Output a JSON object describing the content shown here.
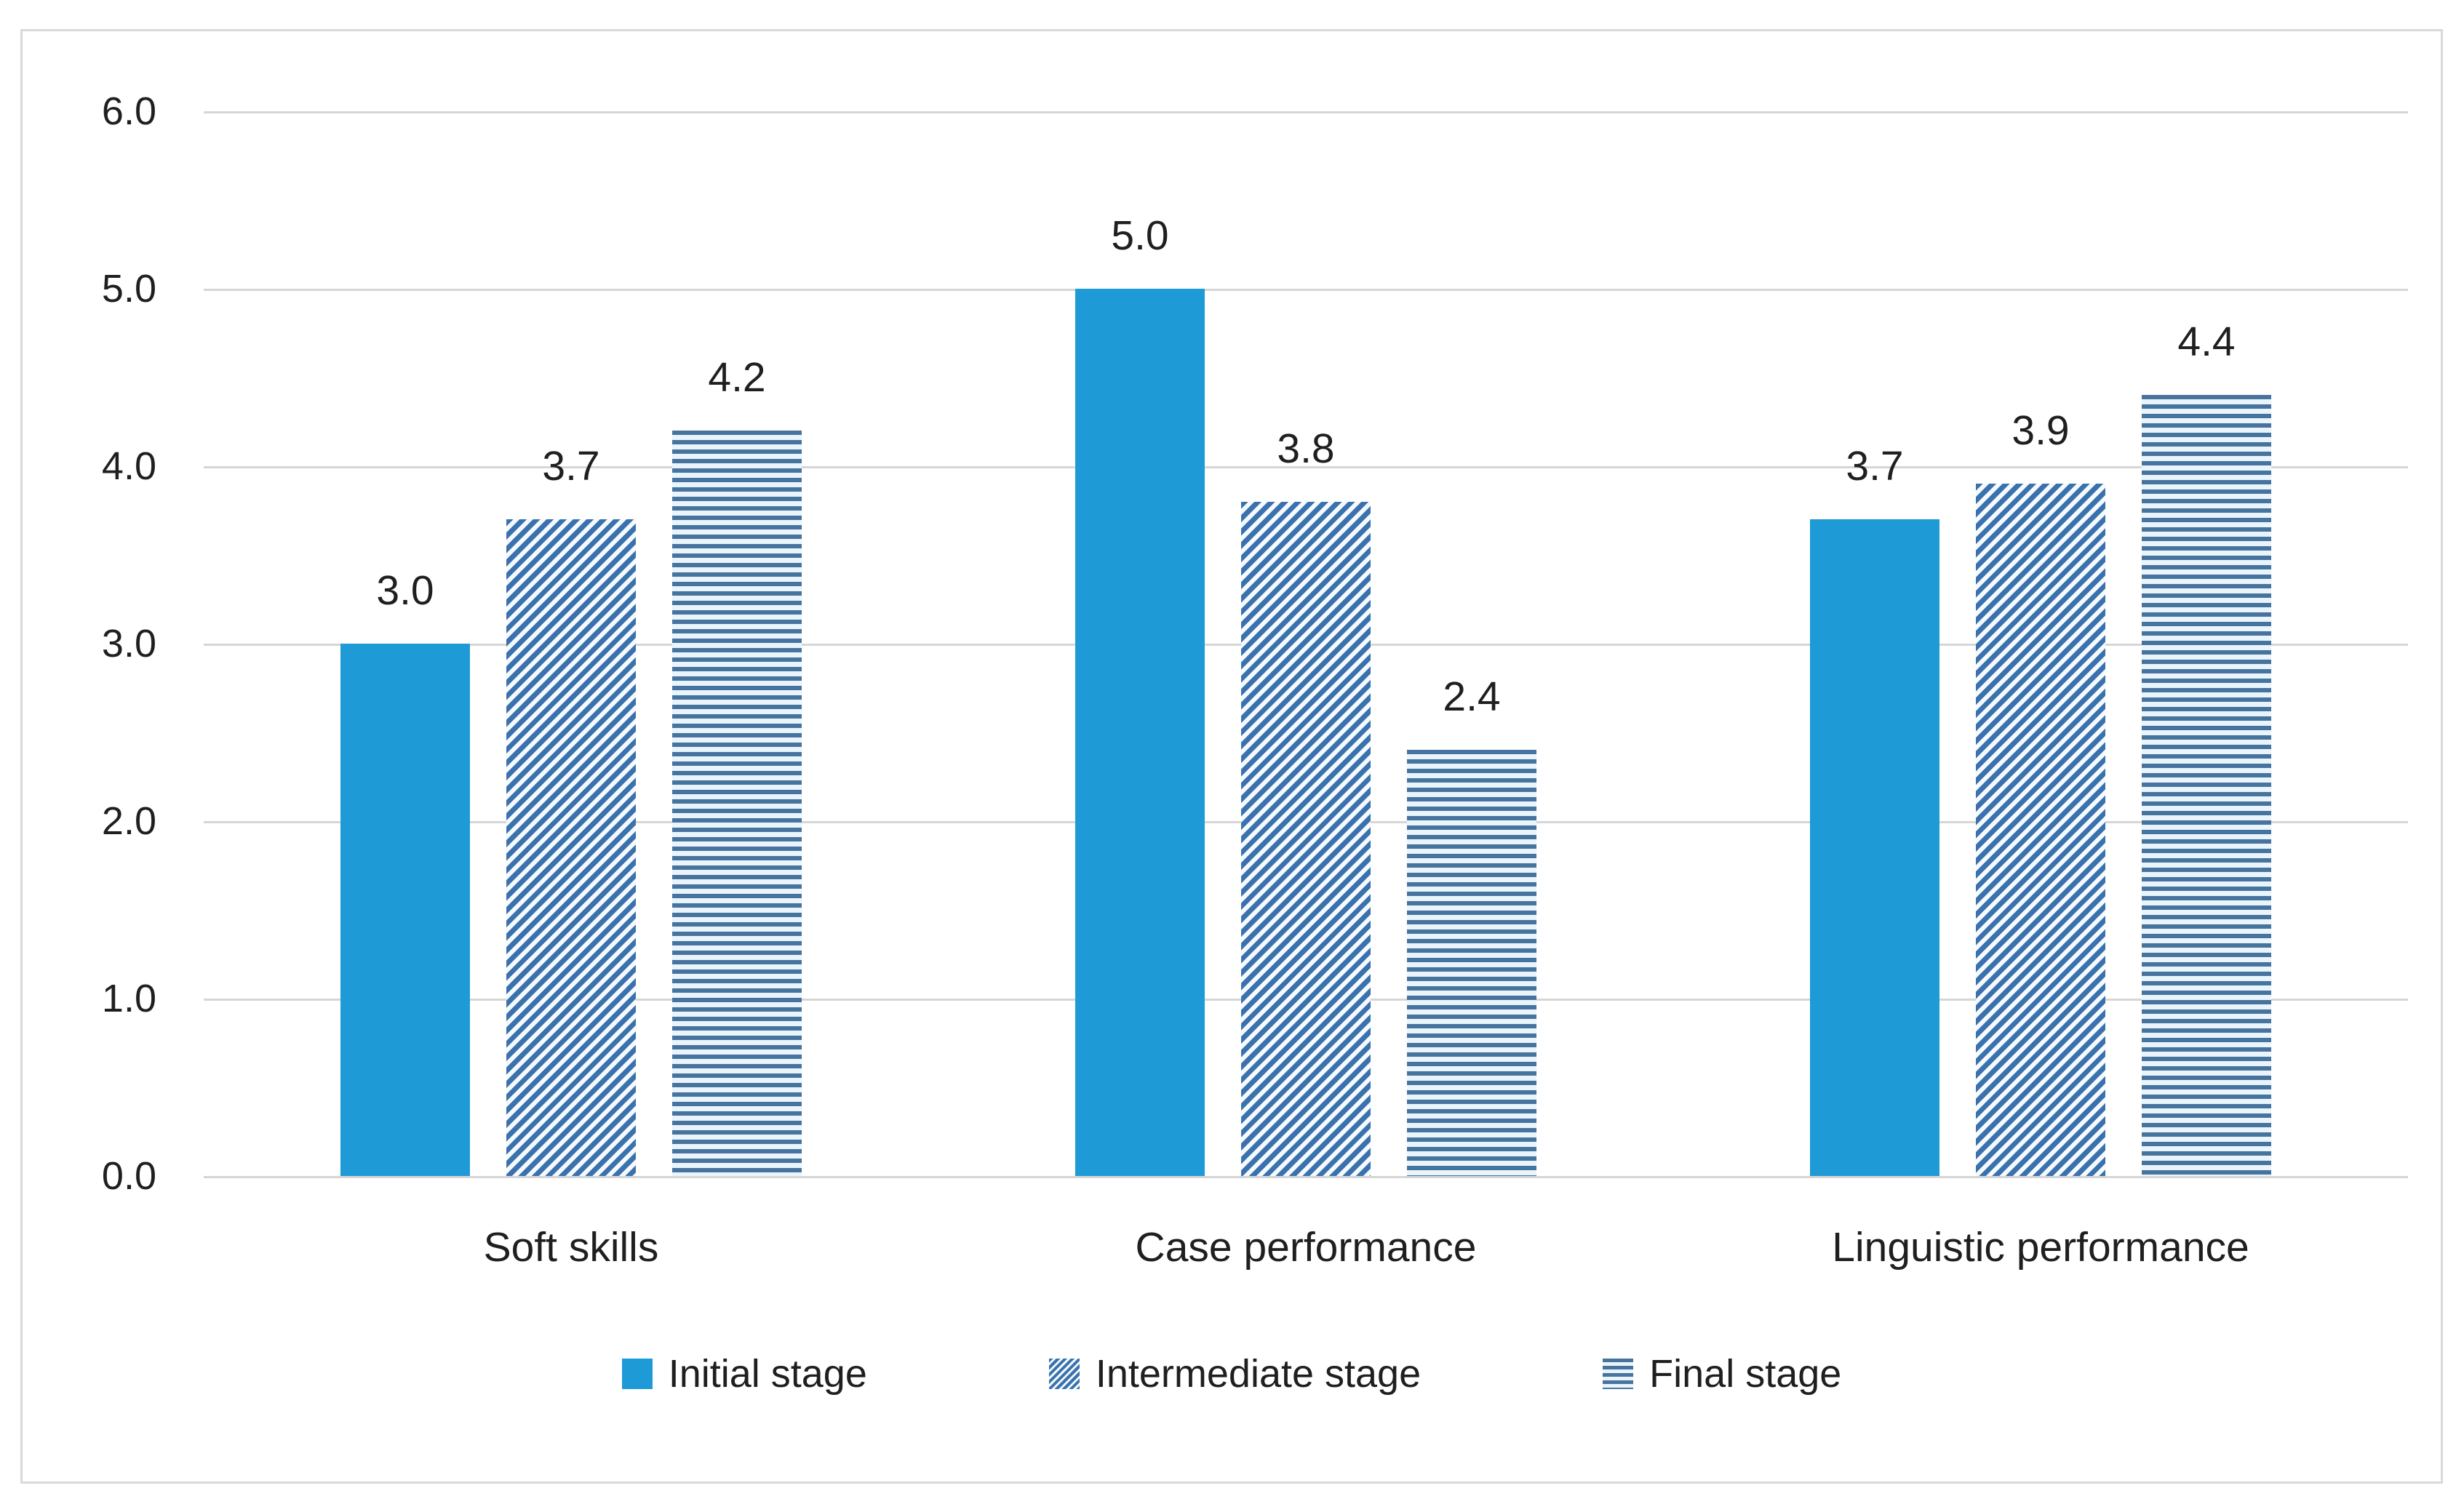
{
  "chart_data": {
    "type": "bar",
    "title": "",
    "xlabel": "",
    "ylabel": "",
    "ylim": [
      0,
      6
    ],
    "ytick_step": 1.0,
    "grid": true,
    "legend_position": "bottom",
    "categories": [
      "Soft skills",
      "Case performance",
      "Linguistic performance"
    ],
    "series": [
      {
        "name": "Initial stage",
        "pattern": "solid",
        "values": [
          3.0,
          5.0,
          3.7
        ],
        "labels": [
          "3.0",
          "5.0",
          "3.7"
        ]
      },
      {
        "name": "Intermediate stage",
        "pattern": "diagonal-hatch",
        "values": [
          3.7,
          3.8,
          3.9
        ],
        "labels": [
          "3.7",
          "3.8",
          "3.9"
        ]
      },
      {
        "name": "Final stage",
        "pattern": "horizontal-lines",
        "values": [
          4.2,
          2.4,
          4.4
        ],
        "labels": [
          "4.2",
          "2.4",
          "4.4"
        ]
      }
    ],
    "yticks": [
      "6.0",
      "5.0",
      "4.0",
      "3.0",
      "2.0",
      "1.0",
      "0.0"
    ],
    "colors": {
      "solid_bar": "#1e9ad6",
      "hatch_stripe": "#3b72ae",
      "hatch_background": "#f4fafd",
      "lines_stripe": "#47739f",
      "lines_background": "#eaf5fb",
      "gridline": "#d6d6d6",
      "frame_border": "#d9d9d9",
      "text": "#1f1f1f",
      "background": "#ffffff"
    }
  }
}
